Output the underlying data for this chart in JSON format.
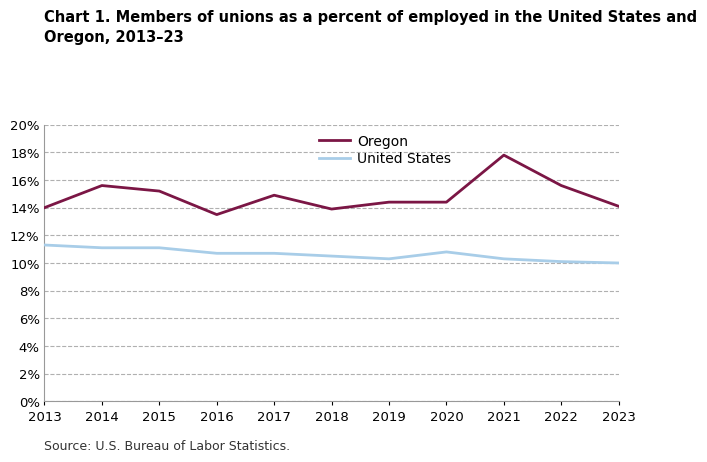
{
  "title_line1": "Chart 1. Members of unions as a percent of employed in the United States and",
  "title_line2": "Oregon, 2013–23",
  "years": [
    2013,
    2014,
    2015,
    2016,
    2017,
    2018,
    2019,
    2020,
    2021,
    2022,
    2023
  ],
  "oregon": [
    14.0,
    15.6,
    15.2,
    13.5,
    14.9,
    13.9,
    14.4,
    14.4,
    17.8,
    15.6,
    14.1
  ],
  "us": [
    11.3,
    11.1,
    11.1,
    10.7,
    10.7,
    10.5,
    10.3,
    10.8,
    10.3,
    10.1,
    10.0
  ],
  "oregon_color": "#7b1645",
  "us_color": "#a8cde8",
  "oregon_label": "Oregon",
  "us_label": "United States",
  "ylim": [
    0,
    20
  ],
  "yticks": [
    0,
    2,
    4,
    6,
    8,
    10,
    12,
    14,
    16,
    18,
    20
  ],
  "source": "Source: U.S. Bureau of Labor Statistics.",
  "grid_color": "#b0b0b0",
  "line_width": 2.0,
  "background_color": "#ffffff",
  "title_fontsize": 10.5,
  "legend_fontsize": 10,
  "tick_fontsize": 9.5,
  "source_fontsize": 9,
  "spine_color": "#999999"
}
